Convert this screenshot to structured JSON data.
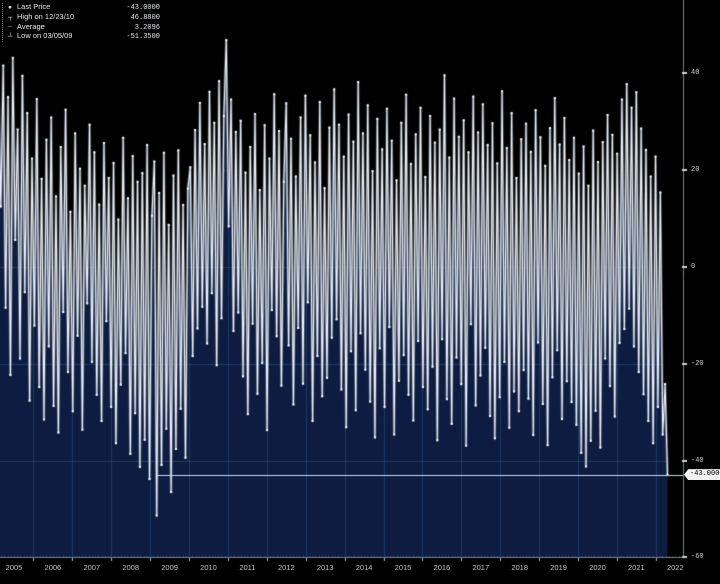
{
  "legend": {
    "items": [
      {
        "symbol": "●",
        "label": "Last Price",
        "value": "-43.0000"
      },
      {
        "symbol": "┬",
        "label": "High on 12/23/10",
        "value": "46.8800"
      },
      {
        "symbol": "╌",
        "label": "Average",
        "value": "3.2096"
      },
      {
        "symbol": "┴",
        "label": "Low on 03/05/09",
        "value": "-51.3500"
      }
    ]
  },
  "y_axis": {
    "ticks": [
      "40",
      "20",
      "0",
      "-20",
      "-40",
      "-60"
    ],
    "tick_values": [
      40,
      20,
      0,
      -20,
      -40,
      -60
    ],
    "last_price_badge": "-43.0000"
  },
  "x_axis": {
    "ticks": [
      "2005",
      "2006",
      "2007",
      "2008",
      "2009",
      "2010",
      "2011",
      "2012",
      "2013",
      "2014",
      "2015",
      "2016",
      "2017",
      "2018",
      "2019",
      "2020",
      "2021",
      "2022"
    ]
  },
  "chart_data": {
    "type": "line",
    "title": "",
    "xlabel": "",
    "ylabel": "",
    "legend_position": "top-left",
    "grid": true,
    "ylim": [
      -60,
      56
    ],
    "x_domain_years": [
      2005.1,
      2022.3
    ],
    "stats": {
      "last_price": -43.0,
      "high": 46.88,
      "high_date": "12/23/10",
      "average": 3.2096,
      "low": -51.35,
      "low_date": "03/05/09"
    },
    "last_price_line": {
      "value": -43.0,
      "start_year": 2009.17
    },
    "values": [
      38.2,
      12.5,
      41.6,
      -8.4,
      35.1,
      -22.3,
      43.2,
      5.6,
      28.4,
      -18.9,
      39.5,
      -5.2,
      31.8,
      -27.6,
      22.4,
      -12.1,
      34.7,
      -24.8,
      18.2,
      -31.5,
      26.3,
      -16.4,
      30.9,
      -28.7,
      14.6,
      -34.2,
      24.8,
      -9.3,
      32.5,
      -21.7,
      11.4,
      -29.8,
      27.6,
      -14.2,
      20.3,
      -33.6,
      16.8,
      -7.5,
      29.4,
      -19.6,
      23.7,
      -26.4,
      12.9,
      -31.8,
      25.6,
      -11.2,
      18.4,
      -28.9,
      21.5,
      -36.4,
      9.8,
      -24.3,
      26.7,
      -17.8,
      14.2,
      -38.6,
      22.9,
      -30.2,
      17.6,
      -41.3,
      19.4,
      -35.7,
      25.2,
      -43.8,
      10.6,
      21.8,
      -51.35,
      15.3,
      -40.9,
      23.6,
      -33.4,
      8.7,
      -46.5,
      18.9,
      -37.6,
      24.1,
      -29.3,
      12.8,
      -39.4,
      16.2,
      20.6,
      -18.4,
      28.3,
      -12.7,
      33.9,
      -8.2,
      25.4,
      -15.8,
      36.2,
      -5.4,
      29.8,
      -20.3,
      38.4,
      -10.6,
      31.2,
      46.88,
      8.4,
      34.6,
      -13.2,
      27.9,
      -9.4,
      30.2,
      -22.6,
      19.5,
      -30.4,
      24.8,
      -11.7,
      31.6,
      -26.2,
      15.9,
      -19.8,
      29.3,
      -33.7,
      22.4,
      -8.9,
      35.7,
      -14.3,
      28.1,
      -24.5,
      17.6,
      33.8,
      -16.2,
      26.5,
      -28.4,
      18.7,
      -12.6,
      30.9,
      -24.1,
      35.4,
      -7.3,
      27.2,
      -31.8,
      21.6,
      -18.4,
      34.1,
      -26.7,
      16.3,
      -22.9,
      28.8,
      -14.6,
      36.7,
      -10.8,
      29.4,
      -25.3,
      22.8,
      -33.1,
      31.5,
      -17.4,
      25.9,
      -29.6,
      38.2,
      -13.7,
      27.6,
      -21.2,
      33.4,
      -27.8,
      19.8,
      -35.2,
      30.6,
      -16.8,
      24.3,
      -28.9,
      32.7,
      -12.4,
      26.1,
      -34.6,
      17.9,
      -23.5,
      29.8,
      -18.2,
      35.6,
      -26.4,
      21.3,
      -31.7,
      27.4,
      -15.3,
      32.9,
      -24.8,
      18.6,
      -29.4,
      31.2,
      -20.6,
      25.7,
      -35.8,
      28.4,
      -14.9,
      39.6,
      -27.3,
      22.6,
      -32.4,
      34.8,
      -18.7,
      26.9,
      -24.2,
      30.3,
      -36.9,
      23.7,
      -11.8,
      35.2,
      -28.6,
      27.8,
      -22.4,
      33.6,
      -16.7,
      25.2,
      -30.8,
      29.7,
      -35.4,
      21.4,
      -26.9,
      36.3,
      -19.6,
      24.6,
      -33.2,
      31.8,
      -25.7,
      18.4,
      -29.8,
      26.4,
      -21.3,
      29.6,
      -27.2,
      23.8,
      -34.7,
      32.4,
      -15.6,
      26.8,
      -28.3,
      20.9,
      -36.8,
      28.7,
      -22.8,
      34.9,
      -17.2,
      25.3,
      -31.4,
      30.8,
      -23.6,
      22.1,
      -27.9,
      26.7,
      -32.6,
      19.3,
      -38.4,
      24.9,
      -41.2,
      16.8,
      -35.9,
      28.2,
      -29.7,
      21.7,
      -37.3,
      25.8,
      -18.9,
      31.4,
      -24.6,
      27.3,
      -30.9,
      23.4,
      -15.7,
      34.6,
      -12.8,
      37.8,
      -8.6,
      32.9,
      -16.4,
      36.1,
      -21.7,
      28.6,
      -26.3,
      24.2,
      -31.8,
      18.7,
      -36.4,
      22.8,
      -28.9,
      15.4,
      -34.6,
      -24.2,
      -43.0
    ],
    "colors": {
      "background": "#000000",
      "fill": "#0d1c40",
      "grid": "#2c5286",
      "line": "#eef2f7",
      "line_halo": "#97a3b2",
      "marker": "#ffffff",
      "last_price_line": "#c7d9ee",
      "axis": "#7a8087",
      "tick_mark": "#d0d4d8",
      "tick_text": "#c9ced3"
    }
  }
}
